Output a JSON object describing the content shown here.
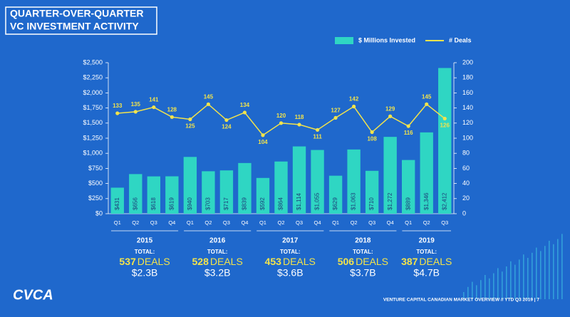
{
  "header": {
    "title_lines": [
      "QUARTER-OVER-QUARTER",
      "VC INVESTMENT ACTIVITY"
    ]
  },
  "chart_data": {
    "type": "bar-line",
    "groups": [
      {
        "year": "2015",
        "quarters": [
          "Q1",
          "Q2",
          "Q3",
          "Q4"
        ],
        "total_label": "TOTAL:",
        "deals": 537,
        "deals_unit": "DEALS",
        "amount": "$2.3B"
      },
      {
        "year": "2016",
        "quarters": [
          "Q1",
          "Q2",
          "Q3",
          "Q4"
        ],
        "total_label": "TOTAL:",
        "deals": 528,
        "deals_unit": "DEALS",
        "amount": "$3.2B"
      },
      {
        "year": "2017",
        "quarters": [
          "Q1",
          "Q2",
          "Q3",
          "Q4"
        ],
        "total_label": "TOTAL:",
        "deals": 453,
        "deals_unit": "DEALS",
        "amount": "$3.6B"
      },
      {
        "year": "2018",
        "quarters": [
          "Q1",
          "Q2",
          "Q3",
          "Q4"
        ],
        "total_label": "TOTAL:",
        "deals": 506,
        "deals_unit": "DEALS",
        "amount": "$3.7B"
      },
      {
        "year": "2019",
        "quarters": [
          "Q1",
          "Q2",
          "Q3"
        ],
        "total_label": "TOTAL:",
        "deals": 387,
        "deals_unit": "DEALS",
        "amount": "$4.7B"
      }
    ],
    "series": [
      {
        "name": "$ Millions Invested",
        "color": "#2fd6c3",
        "kind": "bar",
        "values": [
          431,
          656,
          618,
          619,
          940,
          703,
          717,
          839,
          592,
          864,
          1114,
          1055,
          629,
          1063,
          710,
          1272,
          889,
          1346,
          2412
        ],
        "value_labels": [
          "$431",
          "$656",
          "$618",
          "$619",
          "$940",
          "$703",
          "$717",
          "$839",
          "$592",
          "$864",
          "$1,114",
          "$1,055",
          "$629",
          "$1,063",
          "$710",
          "$1,272",
          "$889",
          "$1,346",
          "$2,412"
        ]
      },
      {
        "name": "# Deals",
        "color": "#f2e34c",
        "kind": "line",
        "axis": "y2",
        "values": [
          133,
          135,
          141,
          128,
          125,
          145,
          124,
          134,
          104,
          120,
          118,
          111,
          127,
          142,
          108,
          129,
          116,
          145,
          126
        ]
      }
    ],
    "ylim": [
      0,
      2500
    ],
    "yticks": [
      {
        "value": 0,
        "label": "$0"
      },
      {
        "value": 250,
        "label": "$250"
      },
      {
        "value": 500,
        "label": "$500"
      },
      {
        "value": 750,
        "label": "$750"
      },
      {
        "value": 1000,
        "label": "$1,000"
      },
      {
        "value": 1250,
        "label": "$1,250"
      },
      {
        "value": 1500,
        "label": "$1,500"
      },
      {
        "value": 1750,
        "label": "$1,750"
      },
      {
        "value": 2000,
        "label": "$2,000"
      },
      {
        "value": 2250,
        "label": "$2,250"
      },
      {
        "value": 2500,
        "label": "$2,500"
      }
    ],
    "y2lim": [
      0,
      200
    ],
    "y2ticks": [
      0,
      20,
      40,
      60,
      80,
      100,
      120,
      140,
      160,
      180,
      200
    ],
    "legend": "top-right"
  },
  "footer": {
    "logo": "CVCA",
    "note": "VENTURE CAPITAL CANADIAN MARKET OVERVIEW // YTD Q3 2019 | 7"
  }
}
